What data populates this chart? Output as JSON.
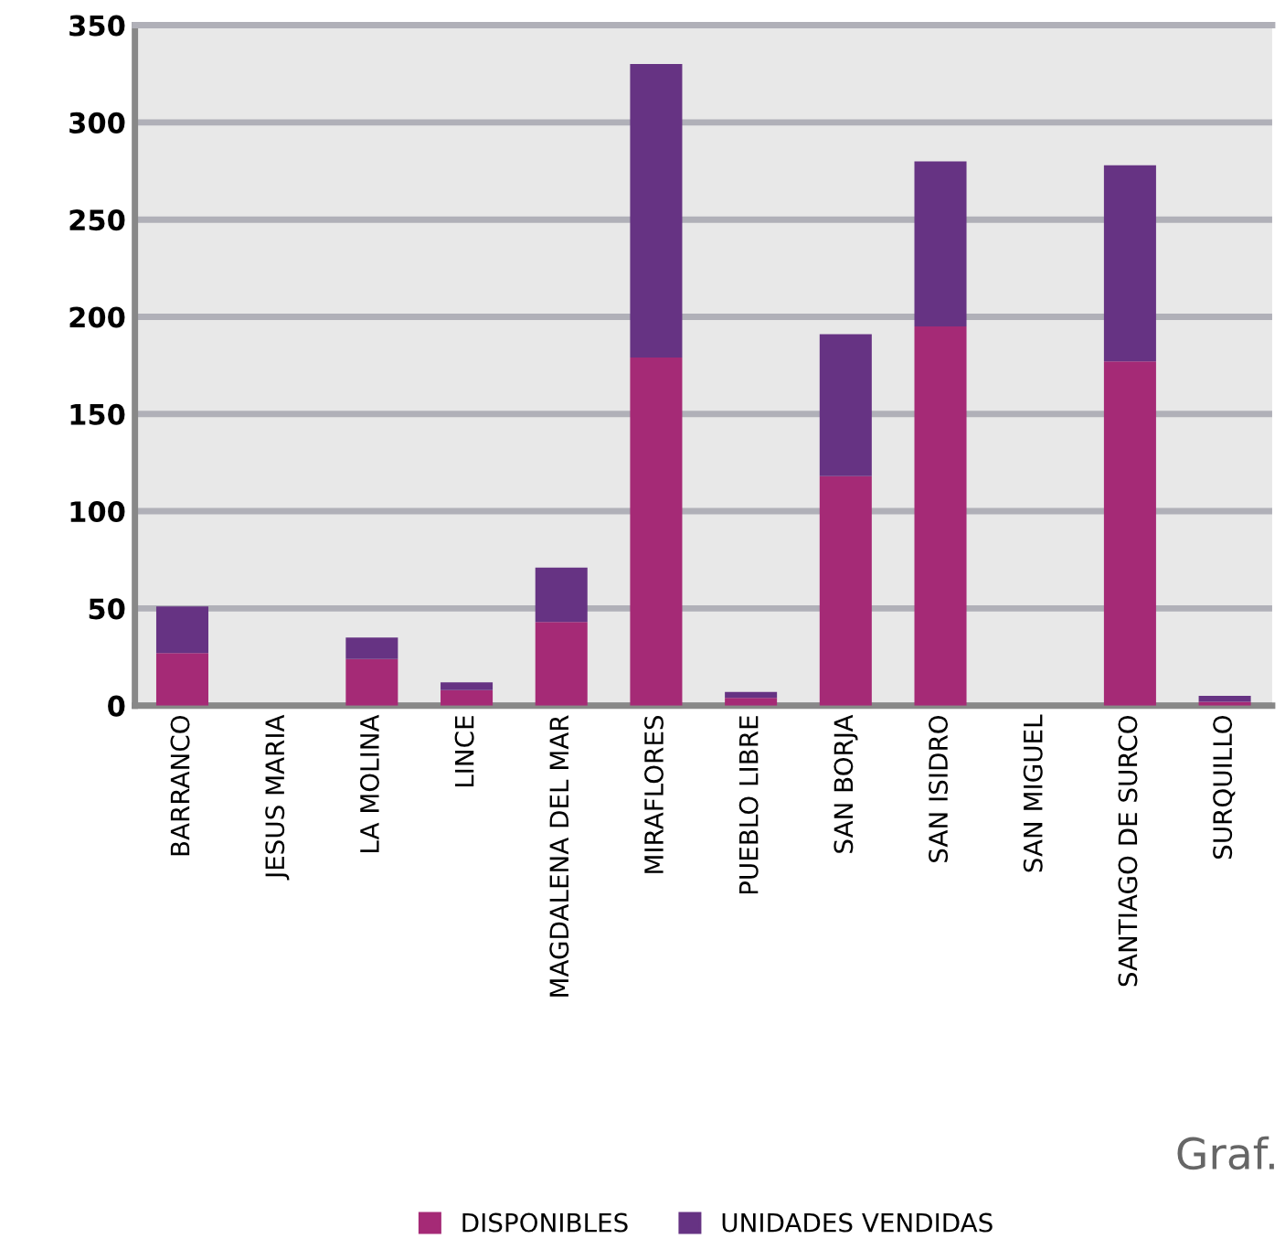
{
  "chart_data": {
    "type": "bar",
    "stacked": true,
    "categories": [
      "BARRANCO",
      "JESUS MARIA",
      "LA MOLINA",
      "LINCE",
      "MAGDALENA DEL MAR",
      "MIRAFLORES",
      "PUEBLO LIBRE",
      "SAN BORJA",
      "SAN ISIDRO",
      "SAN MIGUEL",
      "SANTIAGO DE SURCO",
      "SURQUILLO"
    ],
    "series": [
      {
        "name": "DISPONIBLES",
        "color": "#a52a76",
        "values": [
          27,
          null,
          24,
          8,
          43,
          179,
          4,
          118,
          195,
          null,
          177,
          2
        ]
      },
      {
        "name": "UNIDADES VENDIDAS",
        "color": "#663383",
        "values": [
          24,
          0,
          11,
          4,
          28,
          151,
          3,
          73,
          85,
          0,
          101,
          3
        ]
      }
    ],
    "ylim": [
      0,
      350
    ],
    "yticks": [
      0,
      50,
      100,
      150,
      200,
      250,
      300,
      350
    ],
    "grid": "y",
    "legend": "bottom",
    "annotations": [
      "Graf."
    ]
  }
}
